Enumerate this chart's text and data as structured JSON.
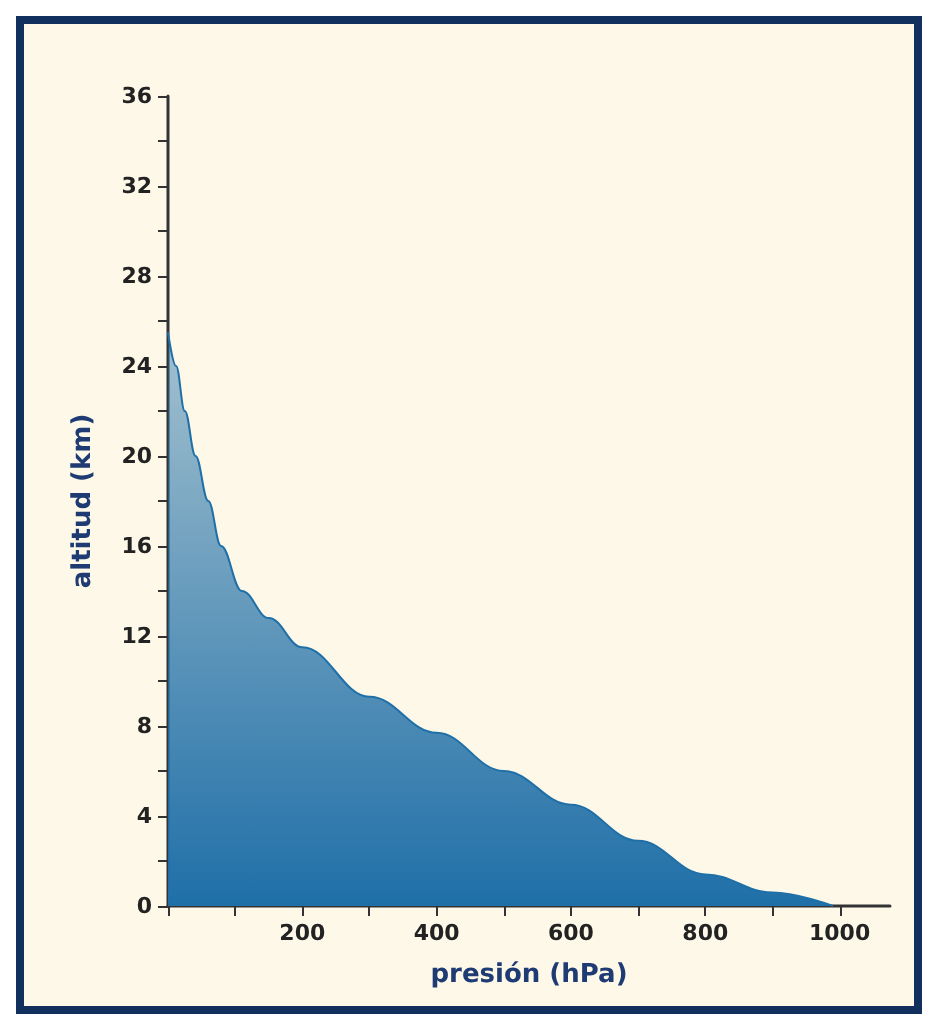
{
  "chart_data": {
    "type": "area",
    "xlabel": "presión (hPa)",
    "ylabel": "altitud (km)",
    "x": [
      0,
      12,
      25,
      41,
      60,
      79,
      110,
      150,
      200,
      300,
      400,
      500,
      600,
      700,
      800,
      900,
      990
    ],
    "series": [
      {
        "color": "#1f6fa8",
        "values": [
          25.5,
          24,
          22,
          20,
          18,
          16,
          14,
          12.8,
          11.5,
          9.3,
          7.7,
          6,
          4.5,
          2.9,
          1.4,
          0.6,
          0
        ]
      }
    ],
    "xlim": [
      0,
      1075
    ],
    "xticks": [
      {
        "value": 0,
        "label": null
      },
      {
        "value": 100,
        "label": null
      },
      200,
      {
        "value": 300,
        "label": null
      },
      400,
      {
        "value": 500,
        "label": null
      },
      600,
      {
        "value": 700,
        "label": null
      },
      800,
      {
        "value": 900,
        "label": null
      },
      1000
    ],
    "ylim": [
      0,
      36
    ],
    "yticks": [
      0,
      {
        "value": 2,
        "label": null
      },
      4,
      {
        "value": 6,
        "label": null
      },
      8,
      {
        "value": 10,
        "label": null
      },
      12,
      {
        "value": 14,
        "label": null
      },
      16,
      {
        "value": 18,
        "label": null
      },
      20,
      {
        "value": 22,
        "label": null
      },
      24,
      {
        "value": 26,
        "label": null
      },
      28,
      {
        "value": 30,
        "label": null
      },
      32,
      {
        "value": 34,
        "label": null
      },
      36
    ],
    "grid": false,
    "marker": "none",
    "line_style": "solid"
  }
}
